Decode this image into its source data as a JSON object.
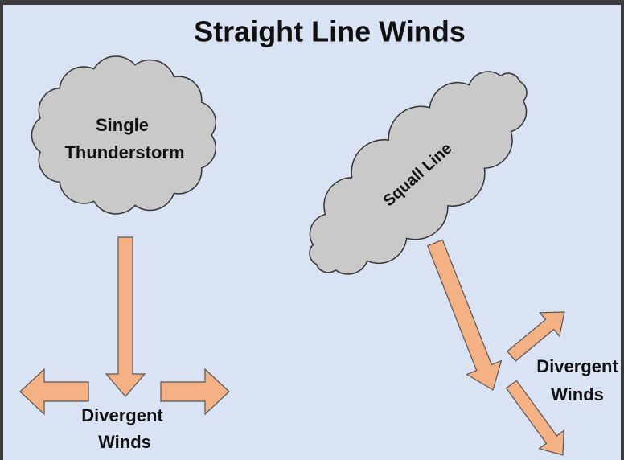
{
  "title": "Straight Line Winds",
  "single_storm": {
    "label": [
      "Single",
      "Thunderstorm"
    ],
    "winds_label": [
      "Divergent",
      "Winds"
    ]
  },
  "squall_line": {
    "label": "Squall Line",
    "winds_label": [
      "Divergent",
      "Winds"
    ]
  }
}
